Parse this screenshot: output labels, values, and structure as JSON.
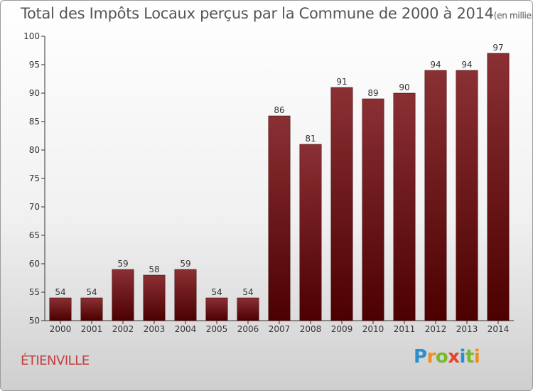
{
  "chart_data": {
    "type": "bar",
    "title": "Total des Impôts Locaux perçus par la Commune de 2000 à 2014",
    "unit_note": "(en milliers d'€)",
    "categories": [
      "2000",
      "2001",
      "2002",
      "2003",
      "2004",
      "2005",
      "2006",
      "2007",
      "2008",
      "2009",
      "2010",
      "2011",
      "2012",
      "2013",
      "2014"
    ],
    "values": [
      54,
      54,
      59,
      58,
      59,
      54,
      54,
      86,
      81,
      91,
      89,
      90,
      94,
      94,
      97
    ],
    "ylim": [
      50,
      100
    ],
    "yticks": [
      50,
      55,
      60,
      65,
      70,
      75,
      80,
      85,
      90,
      95,
      100
    ],
    "xlabel": "",
    "ylabel": "",
    "grid": false
  },
  "commune_name": "ÉTIENVILLE",
  "logo": {
    "letters": [
      "P",
      "r",
      "o",
      "x",
      "i",
      "t",
      "i"
    ],
    "colors": [
      "#2a8fd0",
      "#f28c1b",
      "#7ab929",
      "#e8422c",
      "#2a8fd0",
      "#7ab929",
      "#f28c1b"
    ]
  },
  "colors": {
    "bar_top": "#8a3034",
    "bar_bottom": "#4c0000",
    "bar_edge": "#3a0000",
    "axis": "#333333",
    "label": "#333333",
    "commune": "#c04040"
  }
}
